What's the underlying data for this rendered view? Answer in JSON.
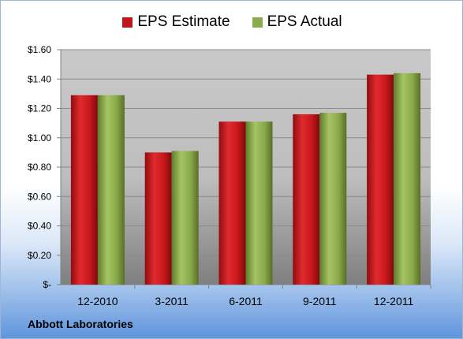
{
  "chart_data": {
    "type": "bar",
    "categories": [
      "12-2010",
      "3-2011",
      "6-2011",
      "9-2011",
      "12-2011"
    ],
    "series": [
      {
        "name": "EPS Estimate",
        "values": [
          1.29,
          0.9,
          1.11,
          1.16,
          1.43
        ],
        "color": "#c0161b"
      },
      {
        "name": "EPS Actual",
        "values": [
          1.29,
          0.91,
          1.11,
          1.17,
          1.44
        ],
        "color": "#8bab4c"
      }
    ],
    "yticks": [
      "$-",
      "$0.20",
      "$0.40",
      "$0.60",
      "$0.80",
      "$1.00",
      "$1.20",
      "$1.40",
      "$1.60"
    ],
    "ylim": [
      0,
      1.6
    ],
    "grid": true,
    "legend_position": "top-center",
    "title": "",
    "xlabel": "",
    "ylabel": ""
  },
  "company": "Abbott Laboratories"
}
